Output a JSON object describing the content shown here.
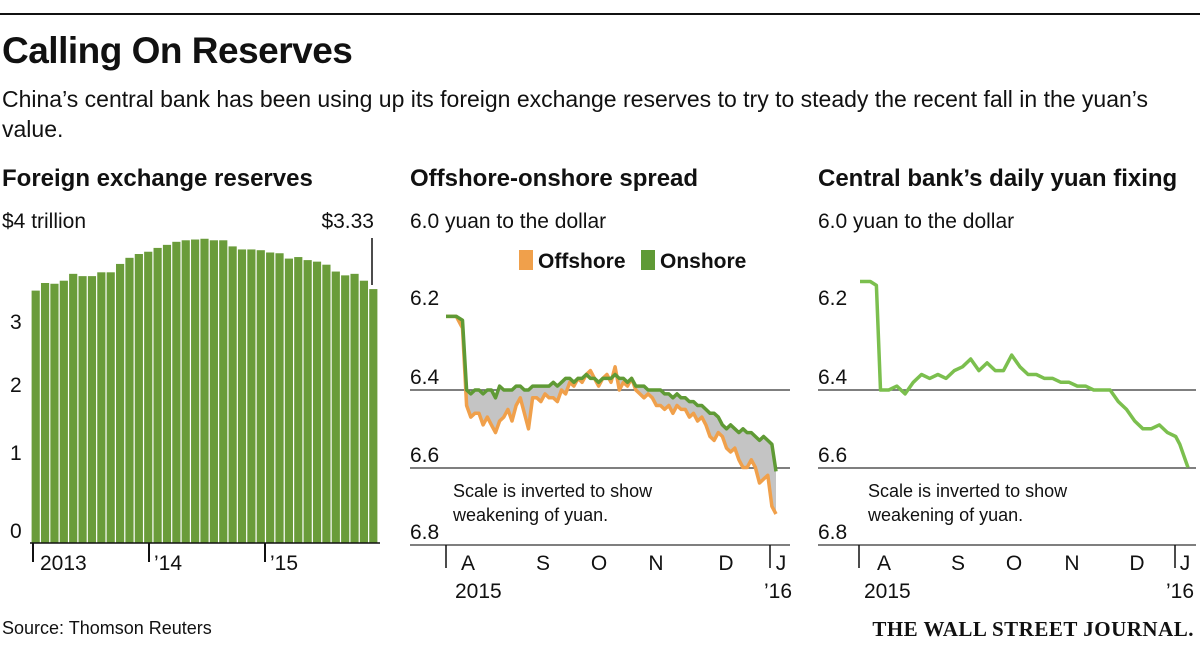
{
  "header": {
    "title": "Calling On Reserves",
    "subtitle": "China’s central bank has been using up its foreign exchange reserves to try to steady the recent fall in the yuan’s value."
  },
  "footer": {
    "source": "Source: Thomson Reuters",
    "logo": "THE WALL STREET JOURNAL."
  },
  "colors": {
    "bar_green": "#6a9c3a",
    "onshore_green": "#5f9a35",
    "offshore_orange": "#f0a04b",
    "spread_gray": "#c4c4c4",
    "fixing_green": "#7bbf4e"
  },
  "chart_data": [
    {
      "type": "bar",
      "title": "Foreign exchange reserves",
      "unit_label": "$4 trillion",
      "end_label": "$3.33",
      "y_ticks": [
        "3",
        "2",
        "1",
        "0"
      ],
      "x_ticks": [
        "2013",
        "’14",
        "’15"
      ],
      "ylim": [
        0,
        4
      ],
      "categories": [
        "2012-12",
        "2013-01",
        "2013-02",
        "2013-03",
        "2013-04",
        "2013-05",
        "2013-06",
        "2013-07",
        "2013-08",
        "2013-09",
        "2013-10",
        "2013-11",
        "2013-12",
        "2014-01",
        "2014-02",
        "2014-03",
        "2014-04",
        "2014-05",
        "2014-06",
        "2014-07",
        "2014-08",
        "2014-09",
        "2014-10",
        "2014-11",
        "2014-12",
        "2015-01",
        "2015-02",
        "2015-03",
        "2015-04",
        "2015-05",
        "2015-06",
        "2015-07",
        "2015-08",
        "2015-09",
        "2015-10",
        "2015-11",
        "2015-12"
      ],
      "values": [
        3.31,
        3.41,
        3.4,
        3.44,
        3.53,
        3.5,
        3.5,
        3.55,
        3.55,
        3.66,
        3.74,
        3.79,
        3.82,
        3.87,
        3.91,
        3.95,
        3.97,
        3.98,
        3.99,
        3.97,
        3.97,
        3.89,
        3.85,
        3.85,
        3.84,
        3.81,
        3.8,
        3.73,
        3.75,
        3.71,
        3.69,
        3.65,
        3.56,
        3.51,
        3.53,
        3.44,
        3.33
      ]
    },
    {
      "type": "line",
      "title": "Offshore-onshore spread",
      "unit_label": "6.0 yuan to the dollar",
      "y_ticks": [
        "6.2",
        "6.4",
        "6.6",
        "6.8"
      ],
      "ylim": [
        6.8,
        6.0
      ],
      "inverted": true,
      "x_ticks": [
        "A",
        "S",
        "O",
        "N",
        "D",
        "J"
      ],
      "x_year_labels": [
        "2015",
        "’16"
      ],
      "note": [
        "Scale is inverted to show",
        "weakening of yuan."
      ],
      "legend": [
        "Offshore",
        "Onshore"
      ],
      "x_range": [
        0,
        160
      ],
      "series": [
        {
          "name": "Offshore",
          "x": [
            0,
            5,
            8,
            10,
            12,
            14,
            16,
            18,
            20,
            22,
            24,
            26,
            28,
            30,
            32,
            34,
            36,
            38,
            40,
            42,
            44,
            46,
            48,
            50,
            52,
            54,
            56,
            58,
            60,
            62,
            64,
            66,
            68,
            70,
            72,
            74,
            76,
            78,
            80,
            82,
            84,
            86,
            88,
            90,
            92,
            94,
            96,
            98,
            100,
            102,
            104,
            106,
            108,
            110,
            112,
            114,
            116,
            118,
            120,
            122,
            124,
            126,
            128,
            130,
            132,
            134,
            136,
            138,
            140,
            142,
            144,
            146,
            148,
            150,
            152,
            154,
            156,
            158,
            160
          ],
          "y": [
            6.21,
            6.21,
            6.24,
            6.44,
            6.47,
            6.46,
            6.46,
            6.49,
            6.47,
            6.49,
            6.51,
            6.48,
            6.47,
            6.45,
            6.48,
            6.44,
            6.42,
            6.46,
            6.5,
            6.42,
            6.42,
            6.43,
            6.41,
            6.42,
            6.42,
            6.43,
            6.4,
            6.41,
            6.38,
            6.39,
            6.37,
            6.38,
            6.36,
            6.35,
            6.37,
            6.39,
            6.37,
            6.36,
            6.38,
            6.34,
            6.4,
            6.38,
            6.39,
            6.37,
            6.4,
            6.41,
            6.42,
            6.41,
            6.42,
            6.44,
            6.44,
            6.45,
            6.44,
            6.46,
            6.44,
            6.45,
            6.45,
            6.47,
            6.46,
            6.48,
            6.47,
            6.49,
            6.52,
            6.53,
            6.51,
            6.52,
            6.55,
            6.56,
            6.55,
            6.58,
            6.6,
            6.6,
            6.58,
            6.6,
            6.64,
            6.63,
            6.62,
            6.7,
            6.72
          ]
        },
        {
          "name": "Onshore",
          "x": [
            0,
            5,
            8,
            10,
            12,
            14,
            16,
            18,
            20,
            22,
            24,
            26,
            28,
            30,
            32,
            34,
            36,
            38,
            40,
            42,
            44,
            46,
            48,
            50,
            52,
            54,
            56,
            58,
            60,
            62,
            64,
            66,
            68,
            70,
            72,
            74,
            76,
            78,
            80,
            82,
            84,
            86,
            88,
            90,
            92,
            94,
            96,
            98,
            100,
            102,
            104,
            106,
            108,
            110,
            112,
            114,
            116,
            118,
            120,
            122,
            124,
            126,
            128,
            130,
            132,
            134,
            136,
            138,
            140,
            142,
            144,
            146,
            148,
            150,
            152,
            154,
            156,
            158,
            160
          ],
          "y": [
            6.21,
            6.21,
            6.22,
            6.4,
            6.41,
            6.4,
            6.4,
            6.41,
            6.4,
            6.4,
            6.42,
            6.39,
            6.4,
            6.4,
            6.4,
            6.39,
            6.39,
            6.4,
            6.4,
            6.39,
            6.39,
            6.39,
            6.39,
            6.39,
            6.38,
            6.39,
            6.38,
            6.37,
            6.37,
            6.38,
            6.37,
            6.37,
            6.36,
            6.37,
            6.37,
            6.38,
            6.37,
            6.37,
            6.37,
            6.36,
            6.37,
            6.37,
            6.38,
            6.37,
            6.39,
            6.39,
            6.39,
            6.4,
            6.4,
            6.4,
            6.4,
            6.41,
            6.41,
            6.42,
            6.41,
            6.42,
            6.42,
            6.43,
            6.43,
            6.44,
            6.44,
            6.45,
            6.46,
            6.46,
            6.47,
            6.49,
            6.5,
            6.49,
            6.5,
            6.51,
            6.5,
            6.51,
            6.51,
            6.52,
            6.53,
            6.52,
            6.53,
            6.54,
            6.61
          ]
        }
      ]
    },
    {
      "type": "line",
      "title": "Central bank’s daily yuan fixing",
      "unit_label": "6.0 yuan to the dollar",
      "y_ticks": [
        "6.2",
        "6.4",
        "6.6",
        "6.8"
      ],
      "ylim": [
        6.8,
        6.0
      ],
      "inverted": true,
      "x_ticks": [
        "A",
        "S",
        "O",
        "N",
        "D",
        "J"
      ],
      "x_year_labels": [
        "2015",
        "’16"
      ],
      "note": [
        "Scale is inverted to show",
        "weakening of yuan."
      ],
      "x_range": [
        0,
        160
      ],
      "series": [
        {
          "name": "Fixing",
          "x": [
            0,
            5,
            8,
            10,
            14,
            18,
            22,
            26,
            30,
            34,
            38,
            42,
            46,
            50,
            54,
            58,
            62,
            66,
            70,
            74,
            78,
            82,
            86,
            90,
            94,
            98,
            102,
            106,
            110,
            114,
            118,
            122,
            126,
            130,
            134,
            138,
            142,
            146,
            150,
            154,
            156,
            158,
            160
          ],
          "y": [
            6.12,
            6.12,
            6.13,
            6.4,
            6.4,
            6.39,
            6.41,
            6.38,
            6.36,
            6.37,
            6.36,
            6.37,
            6.35,
            6.34,
            6.32,
            6.35,
            6.33,
            6.35,
            6.35,
            6.31,
            6.34,
            6.36,
            6.36,
            6.37,
            6.37,
            6.38,
            6.38,
            6.39,
            6.39,
            6.4,
            6.4,
            6.4,
            6.43,
            6.45,
            6.48,
            6.5,
            6.5,
            6.49,
            6.51,
            6.52,
            6.54,
            6.57,
            6.6
          ]
        }
      ]
    }
  ]
}
